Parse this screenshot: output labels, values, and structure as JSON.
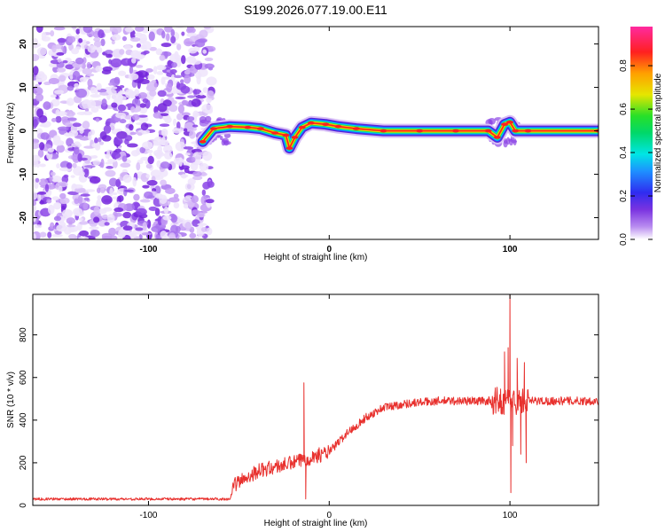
{
  "title": "S199.2026.077.19.00.E11",
  "chart_data": [
    {
      "type": "heatmap",
      "title": "S199.2026.077.19.00.E11",
      "xlabel": "Height of straight line (km)",
      "ylabel": "Frequency (Hz)",
      "xlim": [
        -164,
        149
      ],
      "ylim": [
        -25,
        24
      ],
      "x_ticks": [
        -100,
        0,
        100
      ],
      "y_ticks": [
        -20,
        -10,
        0,
        10,
        20
      ],
      "noise_region": {
        "x_range": [
          -164,
          -65
        ],
        "y_range": [
          -25,
          24
        ]
      },
      "ridge": [
        {
          "x": -70,
          "y": -2.5
        },
        {
          "x": -64,
          "y": 0.5
        },
        {
          "x": -55,
          "y": 1
        },
        {
          "x": -45,
          "y": 0.8
        },
        {
          "x": -38,
          "y": 0.5
        },
        {
          "x": -30,
          "y": -0.5
        },
        {
          "x": -24,
          "y": -1
        },
        {
          "x": -22,
          "y": -4
        },
        {
          "x": -19,
          "y": -1.5
        },
        {
          "x": -15,
          "y": 0.8
        },
        {
          "x": -10,
          "y": 1.8
        },
        {
          "x": -2,
          "y": 1.5
        },
        {
          "x": 5,
          "y": 1
        },
        {
          "x": 15,
          "y": 0.5
        },
        {
          "x": 30,
          "y": 0
        },
        {
          "x": 50,
          "y": 0
        },
        {
          "x": 70,
          "y": 0
        },
        {
          "x": 88,
          "y": 0
        },
        {
          "x": 93,
          "y": -1.5
        },
        {
          "x": 97,
          "y": 1.5
        },
        {
          "x": 100,
          "y": 2
        },
        {
          "x": 103,
          "y": 0
        },
        {
          "x": 110,
          "y": 0
        },
        {
          "x": 149,
          "y": 0
        }
      ],
      "colorbar": {
        "label": "Normalized spectral amplitude",
        "ticks": [
          "0.0",
          "0.2",
          "0.4",
          "0.6",
          "0.8"
        ],
        "range": [
          0,
          0.98
        ]
      }
    },
    {
      "type": "line",
      "xlabel": "Height of straight line (km)",
      "ylabel": "SNR (10 * v/v)",
      "xlim": [
        -164,
        149
      ],
      "ylim": [
        0,
        990
      ],
      "x_ticks": [
        -100,
        0,
        100
      ],
      "y_ticks": [
        0,
        200,
        400,
        600,
        800
      ],
      "color": "#e8312e",
      "series": [
        {
          "name": "SNR",
          "trend": [
            {
              "x": -164,
              "y": 30
            },
            {
              "x": -55,
              "y": 30
            },
            {
              "x": -52,
              "y": 100
            },
            {
              "x": -40,
              "y": 160
            },
            {
              "x": -20,
              "y": 200
            },
            {
              "x": 0,
              "y": 250
            },
            {
              "x": 10,
              "y": 340
            },
            {
              "x": 20,
              "y": 410
            },
            {
              "x": 30,
              "y": 460
            },
            {
              "x": 45,
              "y": 480
            },
            {
              "x": 60,
              "y": 490
            },
            {
              "x": 80,
              "y": 490
            },
            {
              "x": 149,
              "y": 490
            }
          ],
          "spikes": [
            {
              "x": -14,
              "y": 575
            },
            {
              "x": -13,
              "y": 30
            },
            {
              "x": 100,
              "y": 990
            },
            {
              "x": 100.5,
              "y": 60
            },
            {
              "x": 99,
              "y": 740
            },
            {
              "x": 97,
              "y": 720
            },
            {
              "x": 104,
              "y": 690
            },
            {
              "x": 108,
              "y": 670
            },
            {
              "x": 101.5,
              "y": 280
            },
            {
              "x": 106,
              "y": 240
            },
            {
              "x": 109,
              "y": 200
            }
          ]
        }
      ]
    }
  ]
}
